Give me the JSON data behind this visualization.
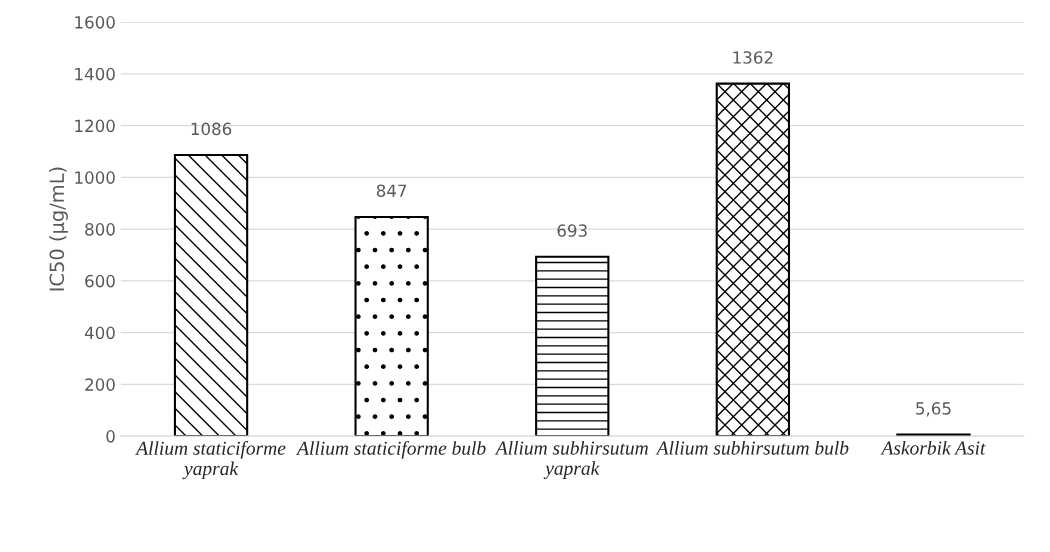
{
  "chart_data": {
    "type": "bar",
    "categories": [
      "Allium staticiforme yaprak",
      "Allium staticiforme bulb",
      "Allium subhirsutum yaprak",
      "Allium subhirsutum bulb",
      "Askorbik Asit"
    ],
    "values": [
      1086,
      847,
      693,
      1362,
      5.65
    ],
    "value_labels": [
      "1086",
      "847",
      "693",
      "1362",
      "5,65"
    ],
    "colors": [
      "#000000",
      "#000000",
      "#000000",
      "#000000",
      "#000000"
    ],
    "ylabel": "IC50 (µg/mL)",
    "ylim": [
      0,
      1600
    ],
    "yticks": [
      0,
      200,
      400,
      600,
      800,
      1000,
      1200,
      1400,
      1600
    ],
    "grid": "y"
  }
}
